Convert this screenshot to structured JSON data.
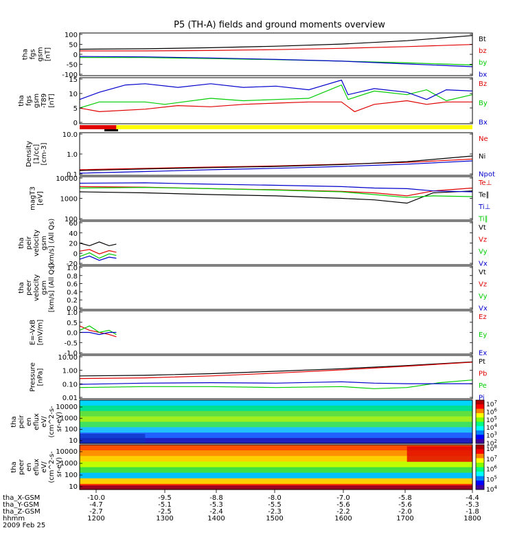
{
  "title": "P5 (TH-A) fields and ground moments overview",
  "date_label": "2009 Feb 25",
  "colors": {
    "black": "#000000",
    "red": "#e00000",
    "green": "#00cc00",
    "blue": "#0000cc",
    "yellow": "#ffff00",
    "cyan": "#00e0e0"
  },
  "chart_data": [
    {
      "type": "line",
      "id": "fgs",
      "ylabel_lines": [
        "tha",
        "fgs",
        "gsm",
        "[nT]"
      ],
      "ylim": [
        -100,
        100
      ],
      "ticks": [
        "100",
        "50",
        "0",
        "-50",
        "-100"
      ],
      "legend": [
        {
          "label": "Bt",
          "color": "black"
        },
        {
          "label": "bz",
          "color": "red"
        },
        {
          "label": "by",
          "color": "green"
        },
        {
          "label": "bx",
          "color": "blue"
        }
      ],
      "series": [
        {
          "name": "Bt",
          "x": [
            1200,
            1300,
            1400,
            1500,
            1600,
            1700,
            1800
          ],
          "values": [
            24,
            26,
            31,
            38,
            48,
            64,
            88
          ],
          "color": "black"
        },
        {
          "name": "bz",
          "x": [
            1200,
            1300,
            1400,
            1500,
            1600,
            1700,
            1800
          ],
          "values": [
            16,
            16,
            18,
            22,
            28,
            36,
            46
          ],
          "color": "red"
        },
        {
          "name": "by",
          "x": [
            1200,
            1300,
            1400,
            1500,
            1600,
            1700,
            1800
          ],
          "values": [
            -15,
            -15,
            -20,
            -25,
            -32,
            -40,
            -50
          ],
          "color": "green"
        },
        {
          "name": "bx",
          "x": [
            1200,
            1300,
            1400,
            1500,
            1600,
            1700,
            1800
          ],
          "values": [
            -10,
            -12,
            -17,
            -24,
            -32,
            -45,
            -58
          ],
          "color": "blue"
        }
      ]
    },
    {
      "type": "line",
      "id": "fgs_t89",
      "ylabel_lines": [
        "tha",
        "fgs",
        "gsm",
        "-T89",
        "[nT]"
      ],
      "ylim": [
        -2,
        17
      ],
      "ticks": [
        "15",
        "10",
        "5",
        "0"
      ],
      "legend": [
        {
          "label": "Bz",
          "color": "red"
        },
        {
          "label": "By",
          "color": "green"
        },
        {
          "label": "Bx",
          "color": "blue"
        }
      ],
      "series": [
        {
          "name": "Bz",
          "x": [
            1200,
            1230,
            1300,
            1350,
            1400,
            1450,
            1500,
            1550,
            1600,
            1620,
            1650,
            1700,
            1730,
            1760,
            1800
          ],
          "values": [
            4.5,
            3,
            4,
            5.5,
            5,
            6,
            6.5,
            7,
            7,
            3,
            6,
            7.5,
            6,
            7,
            7
          ],
          "color": "red"
        },
        {
          "name": "By",
          "x": [
            1200,
            1230,
            1300,
            1330,
            1400,
            1450,
            1500,
            1550,
            1600,
            1610,
            1650,
            1700,
            1730,
            1760,
            1800
          ],
          "values": [
            4.5,
            7,
            7,
            6,
            8.5,
            7.5,
            8,
            8.5,
            14,
            8,
            11.5,
            10,
            12,
            7.5,
            10
          ],
          "color": "green"
        },
        {
          "name": "Bx",
          "x": [
            1200,
            1230,
            1270,
            1300,
            1350,
            1400,
            1450,
            1500,
            1550,
            1600,
            1610,
            1650,
            1700,
            1730,
            1760,
            1800
          ],
          "values": [
            8,
            11,
            14,
            14.5,
            13,
            14.5,
            13,
            13.5,
            12,
            16,
            10,
            12.5,
            11,
            8,
            12,
            11.5
          ],
          "color": "blue"
        }
      ]
    },
    {
      "type": "line",
      "id": "density",
      "yscale": "log",
      "ylabel_lines": [
        "Density",
        "[1/cc]",
        "[cm-3]"
      ],
      "ylim": [
        0.1,
        20
      ],
      "ticks": [
        "10.0",
        "1.0",
        "0.1"
      ],
      "legend": [
        {
          "label": "Ne",
          "color": "red"
        },
        {
          "label": "Ni",
          "color": "black"
        },
        {
          "label": "Npot",
          "color": "blue"
        }
      ],
      "series": [
        {
          "name": "Ne",
          "x": [
            1200,
            1300,
            1400,
            1500,
            1600,
            1700,
            1800
          ],
          "values": [
            0.2,
            0.24,
            0.28,
            0.32,
            0.4,
            0.5,
            0.75
          ],
          "color": "red"
        },
        {
          "name": "Ni",
          "x": [
            1200,
            1300,
            1400,
            1500,
            1600,
            1700,
            1800
          ],
          "values": [
            0.18,
            0.22,
            0.26,
            0.3,
            0.38,
            0.55,
            1.1
          ],
          "color": "black"
        },
        {
          "name": "Npot",
          "x": [
            1200,
            1300,
            1400,
            1500,
            1600,
            1700,
            1800
          ],
          "values": [
            0.13,
            0.16,
            0.2,
            0.24,
            0.3,
            0.4,
            0.6
          ],
          "color": "blue"
        }
      ]
    },
    {
      "type": "line",
      "id": "temperature",
      "yscale": "log",
      "ylabel_lines": [
        "magT3",
        "[eV]"
      ],
      "ylim": [
        100,
        10000
      ],
      "ticks": [
        "10000",
        "1000",
        "100"
      ],
      "legend": [
        {
          "label": "Te⊥",
          "color": "red"
        },
        {
          "label": "Te∥",
          "color": "black"
        },
        {
          "label": "Ti⊥",
          "color": "blue"
        },
        {
          "label": "Ti∥",
          "color": "green"
        }
      ],
      "series": [
        {
          "name": "Te⊥",
          "x": [
            1200,
            1300,
            1400,
            1500,
            1600,
            1650,
            1700,
            1740,
            1800
          ],
          "values": [
            3500,
            3300,
            2800,
            2500,
            2100,
            1800,
            1300,
            2200,
            3000
          ],
          "color": "red"
        },
        {
          "name": "Te∥",
          "x": [
            1200,
            1300,
            1400,
            1500,
            1600,
            1650,
            1700,
            1740,
            1800
          ],
          "values": [
            2000,
            1800,
            1500,
            1300,
            1000,
            850,
            600,
            1800,
            2200
          ],
          "color": "black"
        },
        {
          "name": "Ti⊥",
          "x": [
            1200,
            1300,
            1400,
            1500,
            1600,
            1650,
            1700,
            1740,
            1800
          ],
          "values": [
            5000,
            5200,
            4500,
            4000,
            3500,
            3000,
            2800,
            2200,
            2000
          ],
          "color": "blue"
        },
        {
          "name": "Ti∥",
          "x": [
            1200,
            1300,
            1400,
            1500,
            1600,
            1650,
            1700,
            1740,
            1800
          ],
          "values": [
            3000,
            3200,
            2800,
            2400,
            2000,
            1500,
            1100,
            1300,
            1200
          ],
          "color": "green"
        }
      ]
    },
    {
      "type": "line",
      "id": "peir_velocity",
      "ylabel_lines": [
        "tha",
        "peir",
        "velocity",
        "gsm",
        "[km/s] (All Qs)"
      ],
      "ylim": [
        -20,
        60
      ],
      "ticks": [
        "60",
        "40",
        "20",
        "0",
        "-20"
      ],
      "legend": [
        {
          "label": "Vt",
          "color": "black"
        },
        {
          "label": "Vz",
          "color": "red"
        },
        {
          "label": "Vy",
          "color": "green"
        },
        {
          "label": "Vx",
          "color": "blue"
        }
      ],
      "series": [
        {
          "name": "Vt",
          "x": [
            1200,
            1215,
            1230,
            1245,
            1256
          ],
          "values": [
            20,
            15,
            22,
            15,
            18
          ],
          "color": "black"
        },
        {
          "name": "Vz",
          "x": [
            1200,
            1215,
            1230,
            1245,
            1256
          ],
          "values": [
            5,
            8,
            0,
            6,
            3
          ],
          "color": "red"
        },
        {
          "name": "Vy",
          "x": [
            1200,
            1215,
            1230,
            1245,
            1256
          ],
          "values": [
            -5,
            2,
            -8,
            0,
            -3
          ],
          "color": "green"
        },
        {
          "name": "Vx",
          "x": [
            1200,
            1215,
            1230,
            1245,
            1256
          ],
          "values": [
            -10,
            -4,
            -12,
            -6,
            -8
          ],
          "color": "blue"
        }
      ]
    },
    {
      "type": "line",
      "id": "peer_velocity",
      "ylabel_lines": [
        "tha",
        "peer",
        "velocity",
        "gsm",
        "[km/s] (All Qs)"
      ],
      "ylim": [
        0,
        1
      ],
      "ticks": [
        "1.0",
        "0.8",
        "0.6",
        "0.4",
        "0.2",
        "0.0"
      ],
      "legend": [
        {
          "label": "Vt",
          "color": "black"
        },
        {
          "label": "Vz",
          "color": "red"
        },
        {
          "label": "Vy",
          "color": "green"
        },
        {
          "label": "Vx",
          "color": "blue"
        }
      ],
      "series": []
    },
    {
      "type": "line",
      "id": "efield",
      "ylabel_lines": [
        "E=-VxB",
        "[mV/m]"
      ],
      "ylim": [
        -1,
        1
      ],
      "ticks": [
        "1.0",
        "0.5",
        "0.0",
        "-0.5",
        "-1.0"
      ],
      "legend": [
        {
          "label": "Ez",
          "color": "red"
        },
        {
          "label": "Ey",
          "color": "green"
        },
        {
          "label": "Ex",
          "color": "blue"
        }
      ],
      "series": [
        {
          "name": "Ez",
          "x": [
            1200,
            1215,
            1230,
            1245,
            1256
          ],
          "values": [
            0.3,
            0.1,
            0.0,
            -0.1,
            -0.2
          ],
          "color": "red"
        },
        {
          "name": "Ey",
          "x": [
            1200,
            1215,
            1230,
            1245,
            1256
          ],
          "values": [
            0.1,
            0.3,
            0.0,
            0.1,
            -0.1
          ],
          "color": "green"
        },
        {
          "name": "Ex",
          "x": [
            1200,
            1215,
            1230,
            1245,
            1256
          ],
          "values": [
            0.0,
            0.0,
            -0.1,
            0.0,
            0.0
          ],
          "color": "blue"
        }
      ]
    },
    {
      "type": "line",
      "id": "pressure",
      "yscale": "log",
      "ylabel_lines": [
        "Pressure",
        "[nPa]"
      ],
      "ylim": [
        0.01,
        10
      ],
      "ticks": [
        "10.00",
        "1.00",
        "0.10",
        "0.01"
      ],
      "legend": [
        {
          "label": "Pt",
          "color": "black"
        },
        {
          "label": "Pb",
          "color": "red"
        },
        {
          "label": "Pe",
          "color": "green"
        },
        {
          "label": "Pi",
          "color": "blue"
        }
      ],
      "series": [
        {
          "name": "Pt",
          "x": [
            1200,
            1300,
            1400,
            1500,
            1600,
            1700,
            1800
          ],
          "values": [
            0.38,
            0.42,
            0.55,
            0.8,
            1.2,
            2.0,
            3.6
          ],
          "color": "black"
        },
        {
          "name": "Pb",
          "x": [
            1200,
            1300,
            1400,
            1500,
            1600,
            1700,
            1800
          ],
          "values": [
            0.25,
            0.28,
            0.38,
            0.6,
            1.0,
            1.8,
            3.4
          ],
          "color": "red"
        },
        {
          "name": "Pe",
          "x": [
            1200,
            1300,
            1400,
            1500,
            1600,
            1650,
            1700,
            1750,
            1800
          ],
          "values": [
            0.06,
            0.07,
            0.07,
            0.06,
            0.07,
            0.05,
            0.06,
            0.13,
            0.2
          ],
          "color": "green"
        },
        {
          "name": "Pi",
          "x": [
            1200,
            1300,
            1400,
            1500,
            1600,
            1650,
            1700,
            1750,
            1800
          ],
          "values": [
            0.1,
            0.12,
            0.13,
            0.12,
            0.15,
            0.12,
            0.11,
            0.11,
            0.11
          ],
          "color": "blue"
        }
      ]
    },
    {
      "type": "heatmap",
      "id": "peir_eflux",
      "ylabel_lines": [
        "tha",
        "peir",
        "en",
        "eflux",
        "eV/",
        "(cm^2-s-",
        "sr-eV)"
      ],
      "ylim": [
        5,
        30000
      ],
      "ticks": [
        "10000",
        "1000",
        "100",
        "10"
      ],
      "colorbar_ticks": [
        "10^7",
        "10^6",
        "10^5",
        "10^4",
        "10^3",
        "10^2"
      ]
    },
    {
      "type": "heatmap",
      "id": "peer_eflux",
      "ylabel_lines": [
        "tha",
        "peer",
        "en",
        "eflux",
        "eV/",
        "(cm^2-s-",
        "sr-eV)"
      ],
      "ylim": [
        5,
        30000
      ],
      "ticks": [
        "10000",
        "1000",
        "100",
        "10"
      ],
      "colorbar_ticks": [
        "10^8",
        "10^7",
        "10^6",
        "10^5",
        "10^4"
      ]
    }
  ],
  "x_axis": {
    "rows": [
      {
        "label": "tha_X-GSM",
        "values": [
          "-10.0",
          "-9.5",
          "-8.8",
          "-8.0",
          "-7.0",
          "-5.8",
          "-4.4"
        ]
      },
      {
        "label": "tha_Y-GSM",
        "values": [
          "-4.7",
          "-5.1",
          "-5.3",
          "-5.5",
          "-5.6",
          "-5.6",
          "-5.3"
        ]
      },
      {
        "label": "tha_Z-GSM",
        "values": [
          "-2.7",
          "-2.5",
          "-2.4",
          "-2.3",
          "-2.2",
          "-2.0",
          "-1.8"
        ]
      },
      {
        "label": "hhmm",
        "values": [
          "1200",
          "1300",
          "1400",
          "1500",
          "1600",
          "1700",
          "1800"
        ]
      }
    ]
  }
}
